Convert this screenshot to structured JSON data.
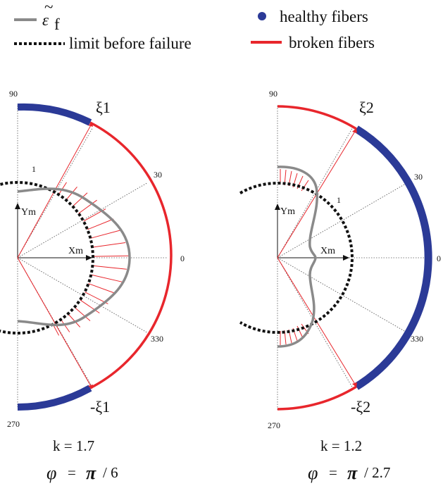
{
  "legend": {
    "strain_symbol": "ε",
    "strain_sub": "f",
    "strain_tilde": "~",
    "limit_label": "limit before failure",
    "healthy_label": "healthy fibers",
    "broken_label": "broken fibers"
  },
  "colors": {
    "healthy": "#2b3a97",
    "broken": "#e8262c",
    "strain_curve": "#8a8a8a",
    "limit": "#111111",
    "guide": "#555555"
  },
  "panels": [
    {
      "id": "left",
      "ticks": {
        "t90": "90",
        "t30": "30",
        "t0": "0",
        "t330": "330",
        "t270": "270"
      },
      "axis_y": "Ym",
      "axis_x": "Xm",
      "limit_radius_label": "1",
      "xi_top": "ξ1",
      "xi_bottom": "-ξ1",
      "k_text": "k = 1.7",
      "phi_symbol": "φ",
      "phi_eq": "=",
      "phi_pi": "π",
      "phi_den": "/ 6"
    },
    {
      "id": "right",
      "ticks": {
        "t90": "90",
        "t30": "30",
        "t0": "0",
        "t330": "330",
        "t270": "270"
      },
      "axis_y": "Ym",
      "axis_x": "Xm",
      "limit_radius_label": "1",
      "xi_top": "ξ2",
      "xi_bottom": "-ξ2",
      "k_text": "k = 1.2",
      "phi_symbol": "φ",
      "phi_eq": "=",
      "phi_pi": "π",
      "phi_den": "/ 2.7"
    }
  ]
}
